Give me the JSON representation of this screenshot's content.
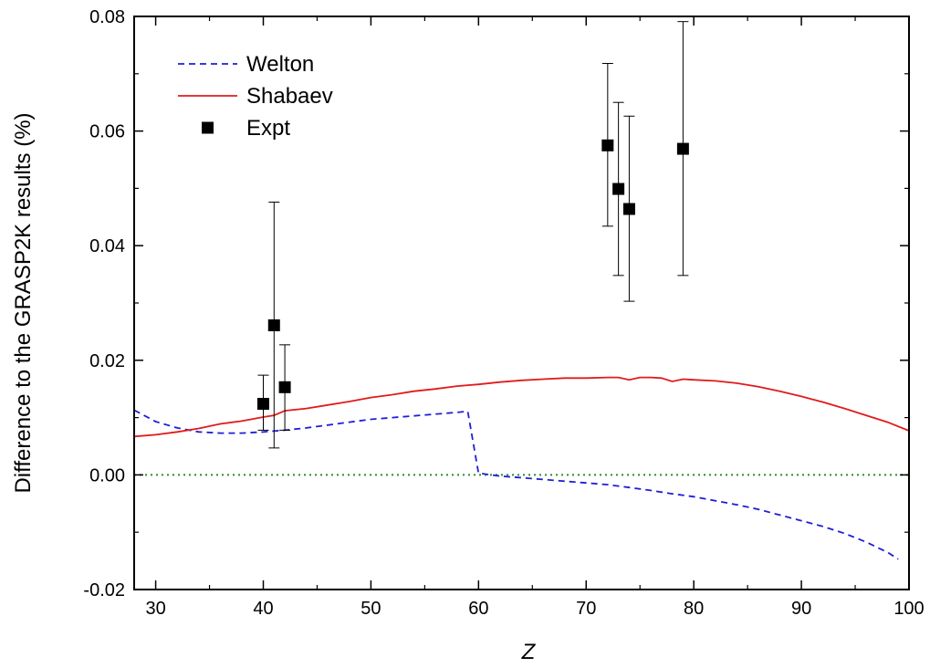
{
  "chart_data": {
    "type": "line",
    "xlabel": "Z",
    "ylabel": "Difference to the GRASP2K results (%)",
    "xlim": [
      28,
      100
    ],
    "ylim": [
      -0.02,
      0.08
    ],
    "x_ticks": [
      30,
      40,
      50,
      60,
      70,
      80,
      90,
      100
    ],
    "x_tick_labels": [
      "30",
      "40",
      "50",
      "60",
      "70",
      "80",
      "90",
      "100"
    ],
    "y_ticks": [
      -0.02,
      0.0,
      0.02,
      0.04,
      0.06,
      0.08
    ],
    "y_tick_labels": [
      "-0.02",
      "0.00",
      "0.02",
      "0.04",
      "0.06",
      "0.08"
    ],
    "grid": false,
    "legend_position": "top-left",
    "zero_line": {
      "y": 0,
      "color": "#2e8b2e",
      "style": "dotted"
    },
    "series": [
      {
        "name": "Welton",
        "kind": "line",
        "style": "dashed",
        "color": "#1f1fd8",
        "points": [
          [
            28,
            0.0113
          ],
          [
            30,
            0.0093
          ],
          [
            32,
            0.0082
          ],
          [
            34,
            0.0075
          ],
          [
            36,
            0.0073
          ],
          [
            38,
            0.0073
          ],
          [
            40,
            0.0075
          ],
          [
            42,
            0.0078
          ],
          [
            44,
            0.0082
          ],
          [
            46,
            0.0087
          ],
          [
            48,
            0.0092
          ],
          [
            50,
            0.0097
          ],
          [
            52,
            0.01
          ],
          [
            54,
            0.0103
          ],
          [
            56,
            0.0106
          ],
          [
            58,
            0.0109
          ],
          [
            59,
            0.0111
          ],
          [
            60,
            0.0003
          ],
          [
            62,
            -0.0002
          ],
          [
            64,
            -0.0005
          ],
          [
            66,
            -0.0008
          ],
          [
            68,
            -0.0011
          ],
          [
            70,
            -0.0014
          ],
          [
            72,
            -0.0017
          ],
          [
            74,
            -0.0022
          ],
          [
            76,
            -0.0027
          ],
          [
            78,
            -0.0033
          ],
          [
            80,
            -0.0038
          ],
          [
            82,
            -0.0045
          ],
          [
            84,
            -0.0052
          ],
          [
            86,
            -0.006
          ],
          [
            88,
            -0.007
          ],
          [
            90,
            -0.008
          ],
          [
            92,
            -0.009
          ],
          [
            94,
            -0.0102
          ],
          [
            96,
            -0.0117
          ],
          [
            98,
            -0.0135
          ],
          [
            99,
            -0.0147
          ]
        ]
      },
      {
        "name": "Shabaev",
        "kind": "line",
        "style": "solid",
        "color": "#e01b1b",
        "points": [
          [
            28,
            0.0067
          ],
          [
            30,
            0.007
          ],
          [
            32,
            0.0075
          ],
          [
            34,
            0.0081
          ],
          [
            36,
            0.0089
          ],
          [
            38,
            0.0094
          ],
          [
            40,
            0.0101
          ],
          [
            41,
            0.0104
          ],
          [
            42,
            0.0112
          ],
          [
            44,
            0.0116
          ],
          [
            46,
            0.0122
          ],
          [
            48,
            0.0128
          ],
          [
            50,
            0.0135
          ],
          [
            52,
            0.014
          ],
          [
            54,
            0.0146
          ],
          [
            56,
            0.015
          ],
          [
            58,
            0.0155
          ],
          [
            60,
            0.0158
          ],
          [
            62,
            0.0162
          ],
          [
            64,
            0.0165
          ],
          [
            66,
            0.0167
          ],
          [
            68,
            0.0169
          ],
          [
            70,
            0.0169
          ],
          [
            72,
            0.017
          ],
          [
            73,
            0.017
          ],
          [
            74,
            0.0166
          ],
          [
            75,
            0.017
          ],
          [
            76,
            0.017
          ],
          [
            77,
            0.0169
          ],
          [
            78,
            0.0163
          ],
          [
            79,
            0.0167
          ],
          [
            80,
            0.0166
          ],
          [
            82,
            0.0164
          ],
          [
            84,
            0.016
          ],
          [
            86,
            0.0154
          ],
          [
            88,
            0.0146
          ],
          [
            90,
            0.0137
          ],
          [
            92,
            0.0127
          ],
          [
            94,
            0.0116
          ],
          [
            96,
            0.0104
          ],
          [
            98,
            0.0092
          ],
          [
            100,
            0.0077
          ]
        ]
      },
      {
        "name": "Expt",
        "kind": "scatter",
        "marker": "square",
        "color": "#000000",
        "points": [
          {
            "x": 40,
            "y": 0.0124,
            "err_low": 0.0078,
            "err_high": 0.0174
          },
          {
            "x": 41,
            "y": 0.0261,
            "err_low": 0.0047,
            "err_high": 0.0476
          },
          {
            "x": 42,
            "y": 0.0153,
            "err_low": 0.0078,
            "err_high": 0.0227
          },
          {
            "x": 72,
            "y": 0.0575,
            "err_low": 0.0434,
            "err_high": 0.0718
          },
          {
            "x": 73,
            "y": 0.0499,
            "err_low": 0.0348,
            "err_high": 0.065
          },
          {
            "x": 74,
            "y": 0.0464,
            "err_low": 0.0303,
            "err_high": 0.0626
          },
          {
            "x": 79,
            "y": 0.0569,
            "err_low": 0.0348,
            "err_high": 0.0791
          }
        ]
      }
    ]
  }
}
